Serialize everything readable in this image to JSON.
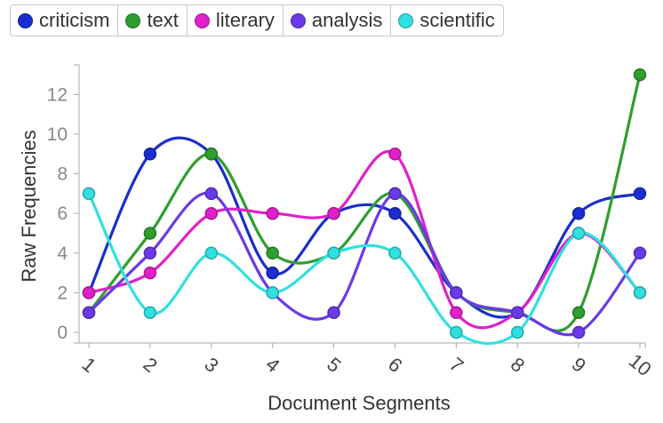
{
  "chart_data": {
    "type": "line",
    "xlabel": "Document Segments",
    "ylabel": "Raw Frequencies",
    "x": [
      1,
      2,
      3,
      4,
      5,
      6,
      7,
      8,
      9,
      10
    ],
    "ylim": [
      -0.5,
      13
    ],
    "yticks": [
      0,
      2,
      4,
      6,
      8,
      10,
      12
    ],
    "xticks": [
      "1",
      "2",
      "3",
      "4",
      "5",
      "6",
      "7",
      "8",
      "9",
      "10"
    ],
    "grid": false,
    "legend_position": "top-left",
    "series": [
      {
        "name": "criticism",
        "color": "#1a2ecf",
        "values": [
          2,
          9,
          9,
          3,
          6,
          6,
          2,
          1,
          6,
          7
        ]
      },
      {
        "name": "text",
        "color": "#2e9e2e",
        "values": [
          1,
          5,
          9,
          4,
          4,
          7,
          2,
          1,
          1,
          13
        ]
      },
      {
        "name": "literary",
        "color": "#e020c8",
        "values": [
          2,
          3,
          6,
          6,
          6,
          9,
          1,
          1,
          5,
          2
        ]
      },
      {
        "name": "analysis",
        "color": "#6a3ae8",
        "values": [
          1,
          4,
          7,
          2,
          1,
          7,
          2,
          1,
          0,
          4
        ]
      },
      {
        "name": "scientific",
        "color": "#30e0e0",
        "values": [
          7,
          1,
          4,
          2,
          4,
          4,
          0,
          0,
          5,
          2
        ]
      }
    ]
  }
}
